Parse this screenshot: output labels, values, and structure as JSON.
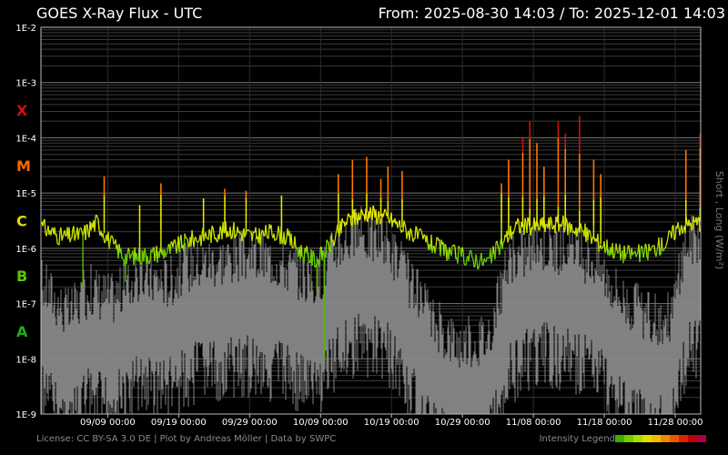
{
  "header": {
    "title": "GOES X-Ray Flux - UTC",
    "range": "From: 2025-08-30 14:03  /  To: 2025-12-01 14:03"
  },
  "footer": {
    "credits": "License: CC BY-SA 3.0 DE | Plot by Andreas Möller | Data by SWPC",
    "legend_label": "Intensity Legend",
    "legend_colors": [
      "#44aa00",
      "#77cc00",
      "#aadd00",
      "#dddd00",
      "#eebb00",
      "#ee8800",
      "#ee5500",
      "#dd2200",
      "#bb0000",
      "#aa0044"
    ]
  },
  "side_label": "Short , Long (W/m²)",
  "flare_classes": [
    {
      "label": "X",
      "color": "#cc1111",
      "flux": 0.000316
    },
    {
      "label": "M",
      "color": "#ff6600",
      "flux": 3.16e-05
    },
    {
      "label": "C",
      "color": "#dddd00",
      "flux": 3.16e-06
    },
    {
      "label": "B",
      "color": "#55cc00",
      "flux": 3.16e-07
    },
    {
      "label": "A",
      "color": "#22aa22",
      "flux": 3.16e-08
    }
  ],
  "chart_data": {
    "type": "line",
    "title": "GOES X-Ray Flux - UTC",
    "x_start": "2025-08-30 14:03",
    "x_end": "2025-12-01 14:03",
    "y_scale": "log",
    "ylim": [
      1e-09,
      0.01
    ],
    "ylabel": "Short , Long (W/m²)",
    "y_tick_labels": [
      "1E-2",
      "1E-3",
      "1E-4",
      "1E-5",
      "1E-6",
      "1E-7",
      "1E-8",
      "1E-9"
    ],
    "x_tick_labels": [
      "09/09 00:00",
      "09/19 00:00",
      "09/29 00:00",
      "10/09 00:00",
      "10/19 00:00",
      "10/29 00:00",
      "11/08 00:00",
      "11/18 00:00",
      "11/28 00:00"
    ],
    "grid": true,
    "series": [
      {
        "name": "Long",
        "color": "#dddd00",
        "points": [
          [
            "2025-08-30",
            2.5e-06
          ],
          [
            "2025-09-02",
            1.6e-06
          ],
          [
            "2025-09-05",
            1.8e-06
          ],
          [
            "2025-09-07",
            3e-06
          ],
          [
            "2025-09-09",
            1.2e-06
          ],
          [
            "2025-09-11",
            7e-07
          ],
          [
            "2025-09-14",
            7.5e-07
          ],
          [
            "2025-09-17",
            9e-07
          ],
          [
            "2025-09-20",
            1.4e-06
          ],
          [
            "2025-09-23",
            1.8e-06
          ],
          [
            "2025-09-26",
            2.2e-06
          ],
          [
            "2025-09-29",
            1.6e-06
          ],
          [
            "2025-10-02",
            2e-06
          ],
          [
            "2025-10-04",
            1.5e-06
          ],
          [
            "2025-10-06",
            8e-07
          ],
          [
            "2025-10-08",
            6e-07
          ],
          [
            "2025-10-10",
            1.2e-06
          ],
          [
            "2025-10-12",
            3e-06
          ],
          [
            "2025-10-15",
            4.5e-06
          ],
          [
            "2025-10-18",
            3.5e-06
          ],
          [
            "2025-10-21",
            2e-06
          ],
          [
            "2025-10-24",
            1.2e-06
          ],
          [
            "2025-10-27",
            8e-07
          ],
          [
            "2025-10-30",
            6.5e-07
          ],
          [
            "2025-11-01",
            5.5e-07
          ],
          [
            "2025-11-03",
            1.2e-06
          ],
          [
            "2025-11-05",
            2.5e-06
          ],
          [
            "2025-11-08",
            2.5e-06
          ],
          [
            "2025-11-11",
            2.8e-06
          ],
          [
            "2025-11-14",
            2.2e-06
          ],
          [
            "2025-11-17",
            1.2e-06
          ],
          [
            "2025-11-20",
            8e-07
          ],
          [
            "2025-11-23",
            8e-07
          ],
          [
            "2025-11-26",
            1.2e-06
          ],
          [
            "2025-11-28",
            2.5e-06
          ],
          [
            "2025-12-01",
            3e-06
          ]
        ],
        "peaks": [
          [
            "2025-09-08",
            2e-05
          ],
          [
            "2025-09-13",
            6e-06
          ],
          [
            "2025-09-16",
            1.5e-05
          ],
          [
            "2025-09-22",
            8e-06
          ],
          [
            "2025-09-25",
            1.2e-05
          ],
          [
            "2025-09-28",
            1.1e-05
          ],
          [
            "2025-10-03",
            9e-06
          ],
          [
            "2025-10-11",
            2.2e-05
          ],
          [
            "2025-10-13",
            4e-05
          ],
          [
            "2025-10-15",
            4.5e-05
          ],
          [
            "2025-10-17",
            1.8e-05
          ],
          [
            "2025-10-18",
            3e-05
          ],
          [
            "2025-10-20",
            2.5e-05
          ],
          [
            "2025-11-03",
            1.5e-05
          ],
          [
            "2025-11-04",
            4e-05
          ],
          [
            "2025-11-06",
            0.0001
          ],
          [
            "2025-11-07",
            0.0002
          ],
          [
            "2025-11-08",
            8e-05
          ],
          [
            "2025-11-09",
            3e-05
          ],
          [
            "2025-11-11",
            0.0002
          ],
          [
            "2025-11-12",
            0.00012
          ],
          [
            "2025-11-14",
            0.00025
          ],
          [
            "2025-11-16",
            4e-05
          ],
          [
            "2025-11-17",
            2.2e-05
          ],
          [
            "2025-11-29",
            6e-05
          ],
          [
            "2025-12-01",
            0.00012
          ]
        ],
        "dips": [
          [
            "2025-09-05",
            2e-07
          ],
          [
            "2025-09-11",
            2.5e-07
          ],
          [
            "2025-10-09",
            1e-08
          ],
          [
            "2025-10-08",
            1.6e-07
          ]
        ]
      },
      {
        "name": "Short",
        "color": "#888888",
        "points": [
          [
            "2025-08-30",
            4e-08
          ],
          [
            "2025-09-03",
            1e-08
          ],
          [
            "2025-09-06",
            3e-08
          ],
          [
            "2025-09-09",
            2e-08
          ],
          [
            "2025-09-13",
            5e-08
          ],
          [
            "2025-09-17",
            4e-08
          ],
          [
            "2025-09-20",
            8e-08
          ],
          [
            "2025-09-24",
            1e-07
          ],
          [
            "2025-09-28",
            1.2e-07
          ],
          [
            "2025-10-02",
            1e-07
          ],
          [
            "2025-10-05",
            6e-08
          ],
          [
            "2025-10-08",
            4e-08
          ],
          [
            "2025-10-11",
            2e-07
          ],
          [
            "2025-10-14",
            3e-07
          ],
          [
            "2025-10-18",
            2e-07
          ],
          [
            "2025-10-21",
            4e-08
          ],
          [
            "2025-10-24",
            8e-09
          ],
          [
            "2025-10-28",
            3e-09
          ],
          [
            "2025-11-01",
            4e-09
          ],
          [
            "2025-11-04",
            8e-08
          ],
          [
            "2025-11-08",
            2e-07
          ],
          [
            "2025-11-12",
            1.5e-07
          ],
          [
            "2025-11-16",
            1e-07
          ],
          [
            "2025-11-20",
            2e-08
          ],
          [
            "2025-11-24",
            8e-09
          ],
          [
            "2025-11-27",
            1e-08
          ],
          [
            "2025-11-29",
            2e-07
          ],
          [
            "2025-12-01",
            3e-07
          ]
        ]
      }
    ]
  }
}
